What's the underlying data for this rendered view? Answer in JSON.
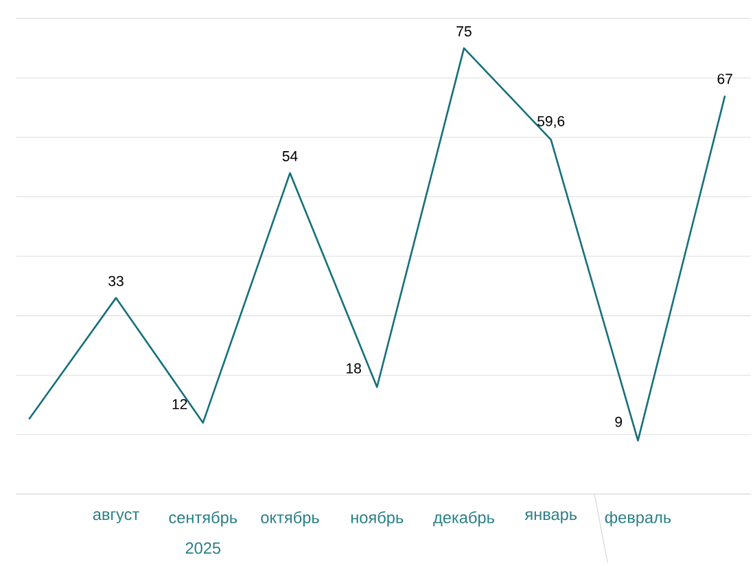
{
  "chart_data": {
    "type": "line",
    "categories": [
      null,
      "август",
      "сентябрь",
      "октябрь",
      "ноябрь",
      "декабрь",
      "январь",
      "февраль",
      null
    ],
    "series": [
      {
        "color": "#17707a",
        "values": [
          12.6,
          33,
          12,
          54,
          18,
          75,
          59.6,
          9,
          67
        ],
        "value_labels": [
          null,
          "33",
          "12",
          "54",
          "18",
          "75",
          "59,6",
          "9",
          "67"
        ]
      }
    ],
    "grid": "y",
    "tick_labels": "x",
    "annotations": [
      "2025"
    ]
  }
}
